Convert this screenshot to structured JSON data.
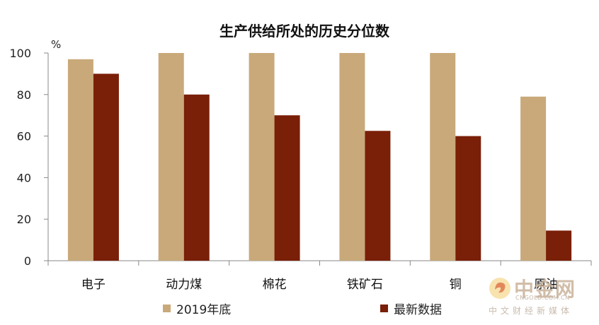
{
  "chart_data": {
    "type": "bar",
    "title": "生产供给所处的历史分位数",
    "ylabel": "%",
    "xlabel": "",
    "categories": [
      "电子",
      "动力煤",
      "棉花",
      "铁矿石",
      "铜",
      "原油"
    ],
    "series": [
      {
        "name": "2019年底",
        "values": [
          97,
          100,
          100,
          100,
          100,
          79
        ],
        "color": "#c9a97a"
      },
      {
        "name": "最新数据",
        "values": [
          90,
          80,
          70,
          62.5,
          60,
          14.5
        ],
        "color": "#7a1f08"
      }
    ],
    "ylim": [
      0,
      100
    ],
    "yticks": [
      0,
      20,
      40,
      60,
      80,
      100
    ],
    "grid": false,
    "legend": "bottom"
  },
  "watermark": {
    "name": "中金网",
    "url": "CNGOLD.COM.CN",
    "tagline": "中文财经新媒体"
  }
}
